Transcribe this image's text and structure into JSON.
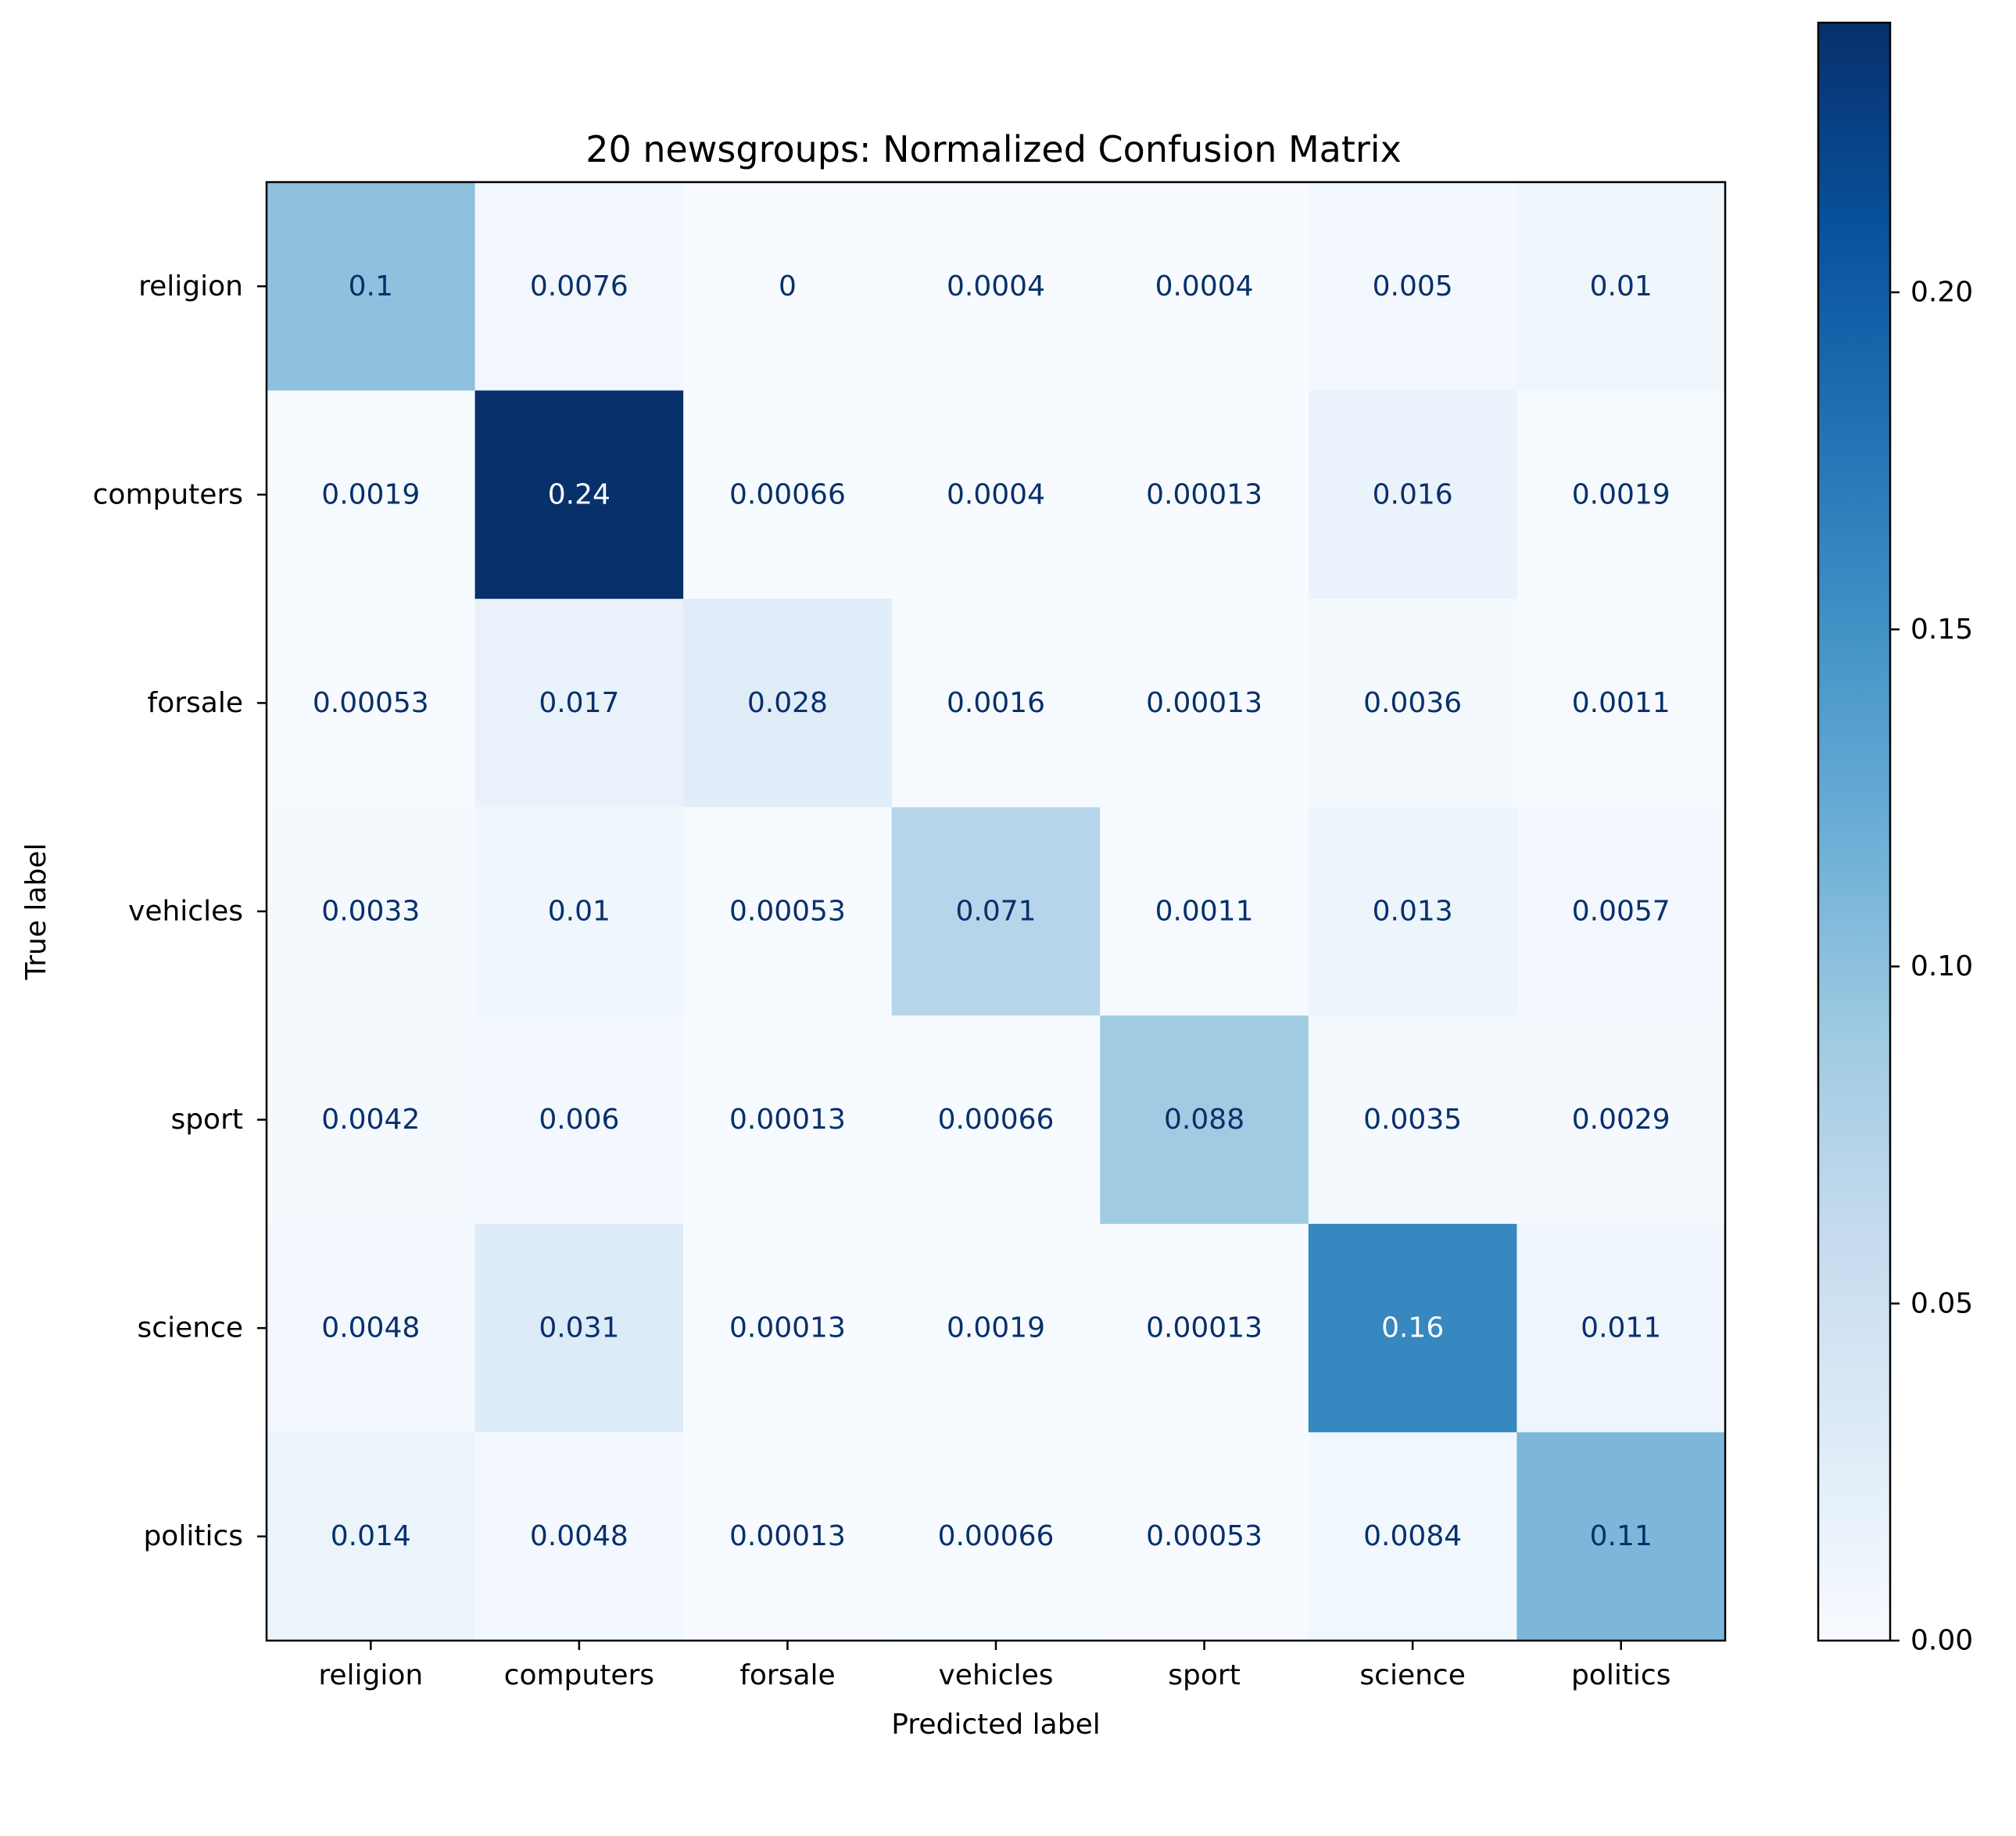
{
  "chart_data": {
    "type": "heatmap",
    "title": "20 newsgroups: Normalized Confusion Matrix",
    "xlabel": "Predicted label",
    "ylabel": "True label",
    "x_categories": [
      "religion",
      "computers",
      "forsale",
      "vehicles",
      "sport",
      "science",
      "politics"
    ],
    "y_categories": [
      "religion",
      "computers",
      "forsale",
      "vehicles",
      "sport",
      "science",
      "politics"
    ],
    "values": [
      [
        0.1,
        0.0076,
        0,
        0.0004,
        0.0004,
        0.005,
        0.01
      ],
      [
        0.0019,
        0.24,
        0.00066,
        0.0004,
        0.00013,
        0.016,
        0.0019
      ],
      [
        0.00053,
        0.017,
        0.028,
        0.0016,
        0.00013,
        0.0036,
        0.0011
      ],
      [
        0.0033,
        0.01,
        0.00053,
        0.071,
        0.0011,
        0.013,
        0.0057
      ],
      [
        0.0042,
        0.006,
        0.00013,
        0.00066,
        0.088,
        0.0035,
        0.0029
      ],
      [
        0.0048,
        0.031,
        0.00013,
        0.0019,
        0.00013,
        0.16,
        0.011
      ],
      [
        0.014,
        0.0048,
        0.00013,
        0.00066,
        0.00053,
        0.0084,
        0.11
      ]
    ],
    "value_labels": [
      [
        "0.1",
        "0.0076",
        "0",
        "0.0004",
        "0.0004",
        "0.005",
        "0.01"
      ],
      [
        "0.0019",
        "0.24",
        "0.00066",
        "0.0004",
        "0.00013",
        "0.016",
        "0.0019"
      ],
      [
        "0.00053",
        "0.017",
        "0.028",
        "0.0016",
        "0.00013",
        "0.0036",
        "0.0011"
      ],
      [
        "0.0033",
        "0.01",
        "0.00053",
        "0.071",
        "0.0011",
        "0.013",
        "0.0057"
      ],
      [
        "0.0042",
        "0.006",
        "0.00013",
        "0.00066",
        "0.088",
        "0.0035",
        "0.0029"
      ],
      [
        "0.0048",
        "0.031",
        "0.00013",
        "0.0019",
        "0.00013",
        "0.16",
        "0.011"
      ],
      [
        "0.014",
        "0.0048",
        "0.00013",
        "0.00066",
        "0.00053",
        "0.0084",
        "0.11"
      ]
    ],
    "colormap": "Blues",
    "colorbar": {
      "range": [
        0,
        0.24
      ],
      "ticks": [
        0.0,
        0.05,
        0.1,
        0.15,
        0.2
      ],
      "tick_labels": [
        "0.00",
        "0.05",
        "0.10",
        "0.15",
        "0.20"
      ]
    },
    "text_colors": {
      "dark_cells": "#ffffff",
      "light_cells": "#08306b"
    }
  }
}
